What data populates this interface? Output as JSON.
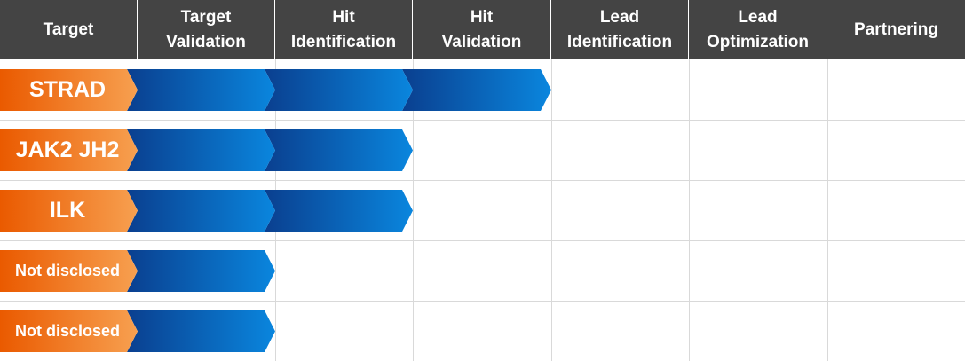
{
  "header": {
    "columns": [
      {
        "label": "Target"
      },
      {
        "label": "Target\nValidation"
      },
      {
        "label": "Hit\nIdentification"
      },
      {
        "label": "Hit\nValidation"
      },
      {
        "label": "Lead\nIdentification"
      },
      {
        "label": "Lead\nOptimization"
      },
      {
        "label": "Partnering"
      }
    ]
  },
  "programs": [
    {
      "name": "STRAD",
      "stages_reached": 3
    },
    {
      "name": "JAK2 JH2",
      "stages_reached": 2
    },
    {
      "name": "ILK",
      "stages_reached": 2
    },
    {
      "name": "Not disclosed",
      "stages_reached": 1
    },
    {
      "name": "Not disclosed",
      "stages_reached": 1
    }
  ],
  "colors": {
    "header_bg": "#444444",
    "orange_start": "#ea5a00",
    "orange_end": "#f7a050",
    "blue_dark": "#0a3f8f",
    "blue_light": "#0a86de",
    "grid": "#d9d9d9"
  }
}
